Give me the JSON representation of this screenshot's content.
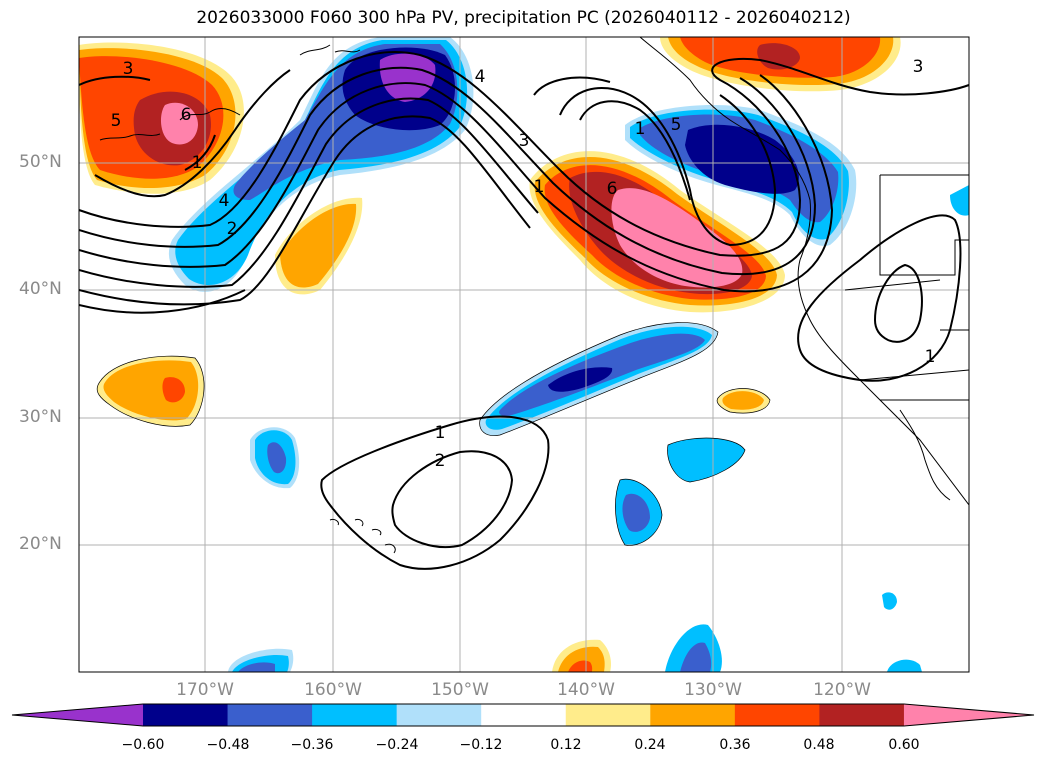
{
  "title": "2026033000 F060 300 hPa PV, precipitation PC (2026040112 - 2026040212)",
  "axes": {
    "lat_labels": [
      "50°N",
      "40°N",
      "30°N",
      "20°N"
    ],
    "lon_labels": [
      "170°W",
      "160°W",
      "150°W",
      "140°W",
      "130°W",
      "120°W"
    ]
  },
  "colorbar": {
    "ticks": [
      "−0.60",
      "−0.48",
      "−0.36",
      "−0.24",
      "−0.12",
      "0.12",
      "0.24",
      "0.36",
      "0.48",
      "0.60"
    ],
    "colors": [
      "#9932cc",
      "#00008b",
      "#3a5fcd",
      "#00bfff",
      "#b0e0fa",
      "#ffffff",
      "#ffec8b",
      "#ffa500",
      "#ff4500",
      "#b22222",
      "#ff82ab"
    ]
  },
  "contour_labels": [
    "3",
    "5",
    "6",
    "1",
    "4",
    "2",
    "3",
    "1",
    "6",
    "1",
    "4",
    "5",
    "3",
    "1",
    "2",
    "1"
  ]
}
